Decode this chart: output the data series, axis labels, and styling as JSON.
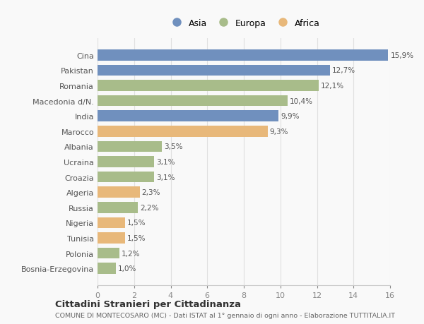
{
  "countries": [
    "Cina",
    "Pakistan",
    "Romania",
    "Macedonia d/N.",
    "India",
    "Marocco",
    "Albania",
    "Ucraina",
    "Croazia",
    "Algeria",
    "Russia",
    "Nigeria",
    "Tunisia",
    "Polonia",
    "Bosnia-Erzegovina"
  ],
  "values": [
    15.9,
    12.7,
    12.1,
    10.4,
    9.9,
    9.3,
    3.5,
    3.1,
    3.1,
    2.3,
    2.2,
    1.5,
    1.5,
    1.2,
    1.0
  ],
  "labels": [
    "15,9%",
    "12,7%",
    "12,1%",
    "10,4%",
    "9,9%",
    "9,3%",
    "3,5%",
    "3,1%",
    "3,1%",
    "2,3%",
    "2,2%",
    "1,5%",
    "1,5%",
    "1,2%",
    "1,0%"
  ],
  "continents": [
    "Asia",
    "Asia",
    "Europa",
    "Europa",
    "Asia",
    "Africa",
    "Europa",
    "Europa",
    "Europa",
    "Africa",
    "Europa",
    "Africa",
    "Africa",
    "Europa",
    "Europa"
  ],
  "colors": {
    "Asia": "#7090be",
    "Europa": "#a8bc8a",
    "Africa": "#e8b87a"
  },
  "legend_order": [
    "Asia",
    "Europa",
    "Africa"
  ],
  "xlim": [
    0,
    16
  ],
  "xticks": [
    0,
    2,
    4,
    6,
    8,
    10,
    12,
    14,
    16
  ],
  "title_main": "Cittadini Stranieri per Cittadinanza",
  "title_sub": "COMUNE DI MONTECOSARO (MC) - Dati ISTAT al 1° gennaio di ogni anno - Elaborazione TUTTITALIA.IT",
  "background_color": "#f9f9f9",
  "bar_height": 0.72
}
